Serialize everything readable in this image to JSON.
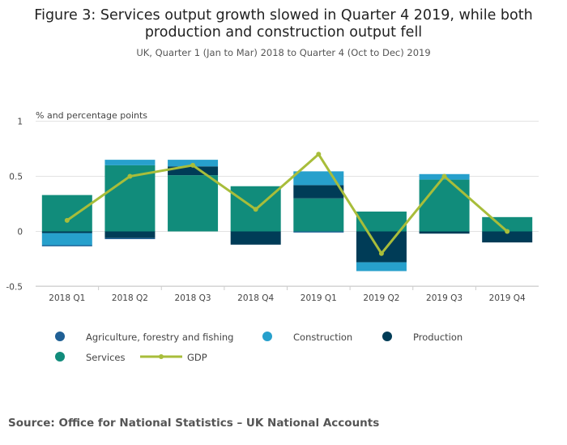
{
  "title_line1": "Figure 3: Services output growth slowed in Quarter 4 2019, while both",
  "title_line2": "production and construction output fell",
  "subtitle": "UK, Quarter 1 (Jan to Mar) 2018 to Quarter 4 (Oct to Dec) 2019",
  "source": "Source: Office for National Statistics – UK National Accounts",
  "chart_data": {
    "type": "bar",
    "stacked": true,
    "ylabel": "% and percentage points",
    "ylim": [
      -0.5,
      1
    ],
    "yticks": [
      -0.5,
      0,
      0.5,
      1
    ],
    "ytick_labels": [
      "-0.5",
      "0",
      "0.5",
      "1"
    ],
    "grid": true,
    "legend_placement": "bottom",
    "categories": [
      "2018 Q1",
      "2018 Q2",
      "2018 Q3",
      "2018 Q4",
      "2019 Q1",
      "2019 Q2",
      "2019 Q3",
      "2019 Q4"
    ],
    "series": [
      {
        "name": "Agriculture, forestry and fishing",
        "color": "#206095",
        "values": [
          -0.01,
          -0.01,
          0,
          0,
          -0.01,
          0,
          0,
          0
        ]
      },
      {
        "name": "Construction",
        "color": "#27a0cc",
        "values": [
          -0.11,
          0.05,
          0.06,
          0,
          0.125,
          -0.08,
          0.05,
          0
        ]
      },
      {
        "name": "Production",
        "color": "#003c57",
        "values": [
          -0.015,
          -0.06,
          0.08,
          -0.12,
          0.12,
          -0.28,
          -0.02,
          -0.1
        ]
      },
      {
        "name": "Services",
        "color": "#118c7b",
        "values": [
          0.33,
          0.6,
          0.51,
          0.41,
          0.3,
          0.18,
          0.47,
          0.13
        ]
      }
    ],
    "line": {
      "name": "GDP",
      "color": "#a8bd3a",
      "values": [
        0.1,
        0.5,
        0.6,
        0.2,
        0.7,
        -0.2,
        0.5,
        0
      ]
    }
  }
}
